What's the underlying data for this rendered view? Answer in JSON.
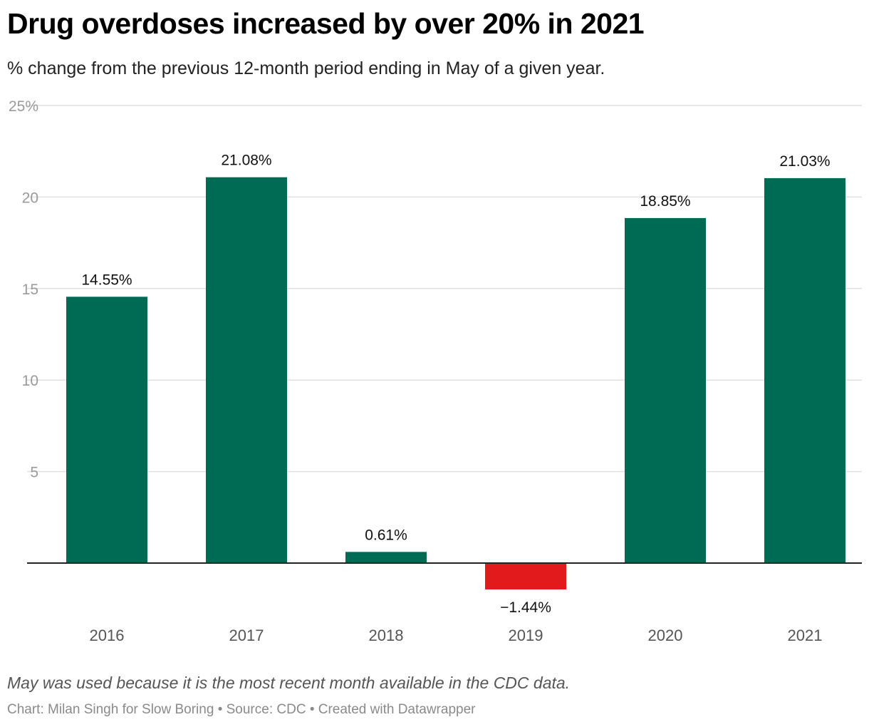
{
  "header": {
    "title": "Drug overdoses increased by over 20% in 2021",
    "subtitle": "% change from the previous 12-month period ending in May of a given year."
  },
  "footer": {
    "note": "May was used because it is the most recent month available in the CDC data.",
    "credit": "Chart: Milan Singh for Slow Boring • Source: CDC • Created with Datawrapper"
  },
  "chart_data": {
    "type": "bar",
    "categories": [
      "2016",
      "2017",
      "2018",
      "2019",
      "2020",
      "2021"
    ],
    "values": [
      14.55,
      21.08,
      0.61,
      -1.44,
      18.85,
      21.03
    ],
    "data_labels": [
      "14.55%",
      "21.08%",
      "0.61%",
      "−1.44%",
      "18.85%",
      "21.03%"
    ],
    "ylim": [
      0,
      25
    ],
    "y_ticks": [
      5,
      10,
      15,
      20,
      25
    ],
    "y_tick_labels": [
      "5",
      "10",
      "15",
      "20",
      "25%"
    ],
    "grid": true,
    "colors": {
      "positive": "#006b54",
      "negative": "#e31a1c"
    }
  }
}
